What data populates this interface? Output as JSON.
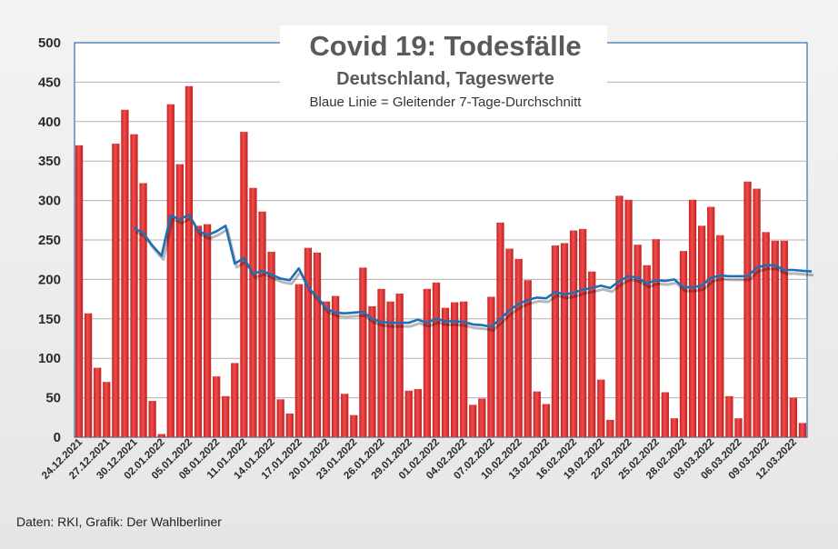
{
  "chart_data": {
    "type": "bar",
    "title": "Covid 19: Todesfälle",
    "subtitle": "Deutschland, Tageswerte",
    "note": "Blaue Linie = Gleitender 7-Tage-Durchschnitt",
    "ylim": [
      0,
      500
    ],
    "yticks": [
      0,
      50,
      100,
      150,
      200,
      250,
      300,
      350,
      400,
      450,
      500
    ],
    "grid": true,
    "bar_color": "#e03030",
    "line_color": "#1f6fb5",
    "xtick_labels": [
      "24.12.2021",
      "27.12.2021",
      "30.12.2021",
      "02.01.2022",
      "05.01.2022",
      "08.01.2022",
      "11.01.2022",
      "14.01.2022",
      "17.01.2022",
      "20.01.2022",
      "23.01.2022",
      "26.01.2022",
      "29.01.2022",
      "01.02.2022",
      "04.02.2022",
      "07.02.2022",
      "10.02.2022",
      "13.02.2022",
      "16.02.2022",
      "19.02.2022",
      "22.02.2022",
      "25.02.2022",
      "28.02.2022",
      "03.03.2022",
      "06.03.2022",
      "09.03.2022",
      "12.03.2022"
    ],
    "xtick_every": 3,
    "series": [
      {
        "name": "Tageswerte",
        "type": "bar",
        "values": [
          370,
          157,
          88,
          70,
          372,
          415,
          384,
          322,
          46,
          4,
          422,
          346,
          445,
          268,
          270,
          77,
          52,
          94,
          387,
          316,
          286,
          235,
          48,
          30,
          194,
          240,
          234,
          172,
          179,
          55,
          28,
          215,
          166,
          188,
          172,
          182,
          59,
          61,
          188,
          196,
          164,
          171,
          172,
          41,
          49,
          178,
          272,
          239,
          226,
          199,
          58,
          42,
          243,
          246,
          262,
          264,
          210,
          73,
          22,
          306,
          301,
          244,
          218,
          251,
          57,
          24,
          236,
          301,
          268,
          292,
          256,
          52,
          24,
          324,
          315,
          260,
          249,
          249,
          50,
          18
        ]
      },
      {
        "name": "Gleitender 7-Tage-Durchschnitt",
        "type": "line",
        "start_index": 6,
        "values": [
          265,
          259,
          243,
          230,
          281,
          276,
          282,
          262,
          256,
          261,
          268,
          220,
          227,
          207,
          211,
          206,
          201,
          199,
          214,
          190,
          178,
          163,
          158,
          157,
          158,
          159,
          150,
          146,
          145,
          145,
          145,
          149,
          145,
          150,
          147,
          147,
          146,
          143,
          142,
          140,
          150,
          161,
          169,
          174,
          177,
          176,
          184,
          181,
          183,
          187,
          189,
          192,
          189,
          198,
          204,
          202,
          195,
          199,
          198,
          200,
          190,
          190,
          192,
          202,
          205,
          204,
          204,
          204,
          215,
          218,
          218,
          212,
          212,
          211,
          210
        ]
      }
    ]
  },
  "footer": {
    "source": "Daten: RKI, Grafik: Der Wahlberliner"
  }
}
